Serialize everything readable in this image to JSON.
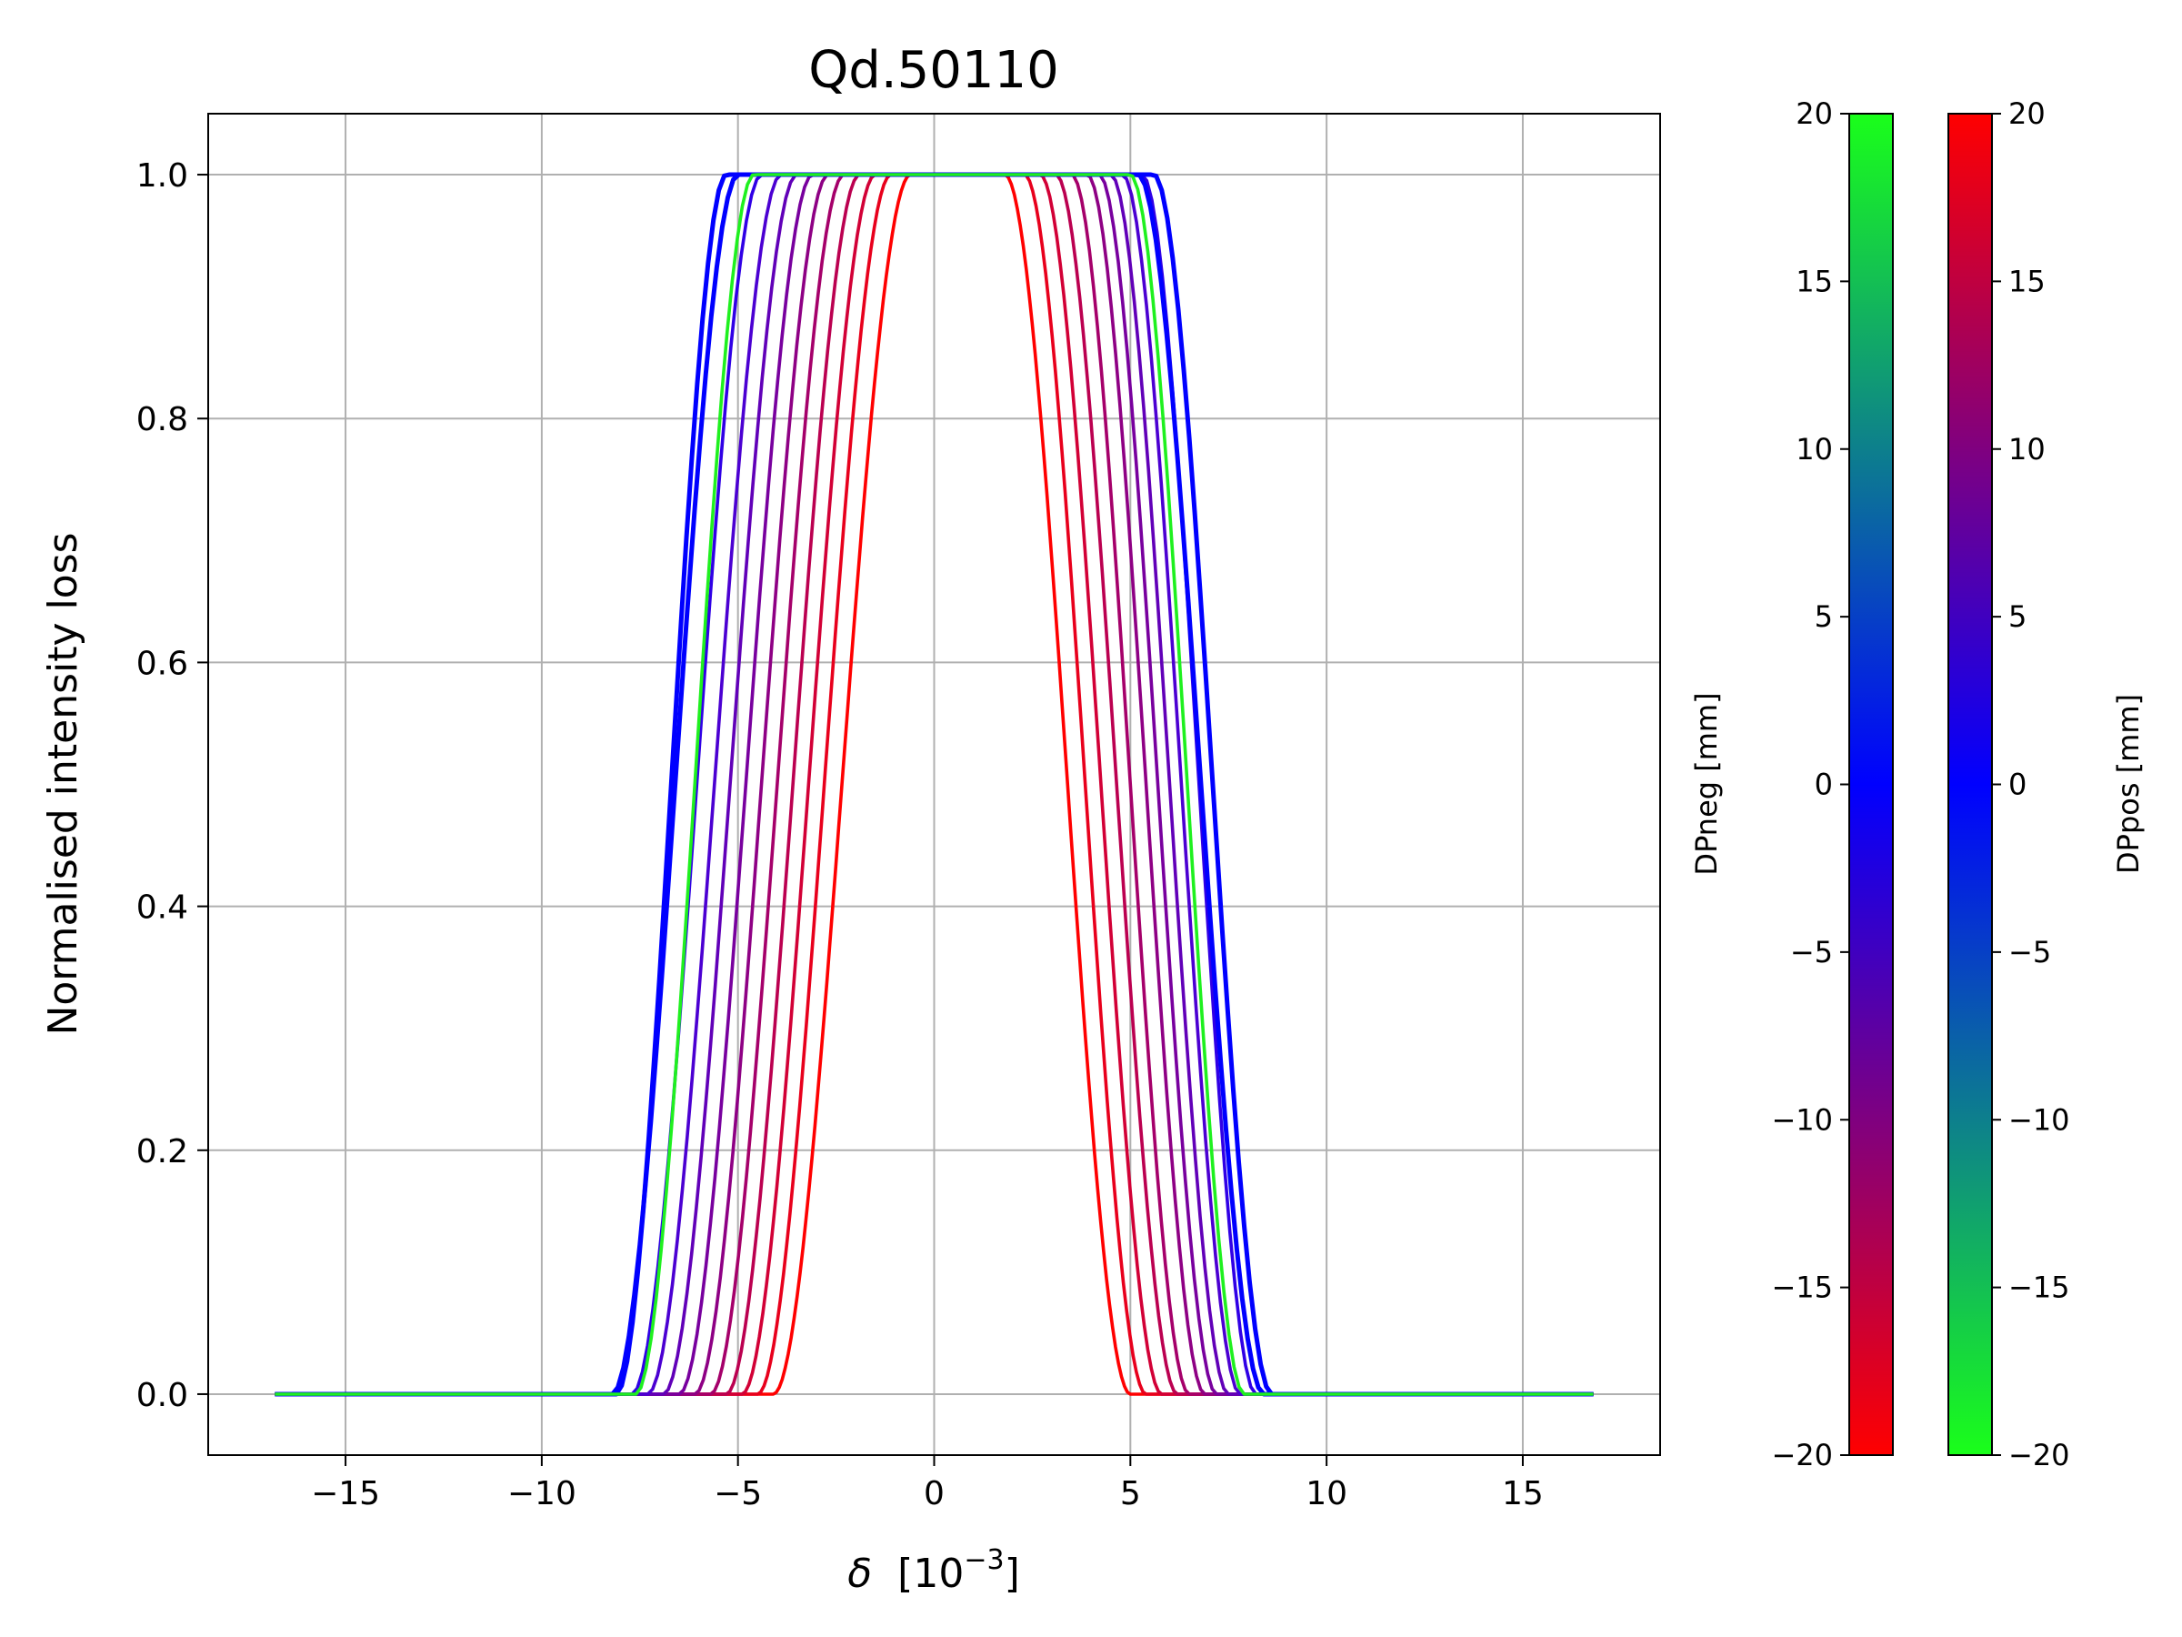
{
  "chart_data": {
    "type": "line",
    "title": "Qd.50110",
    "xlabel_symbol": "δ",
    "xlabel_unit_base": "[10",
    "xlabel_unit_exp": "−3",
    "xlabel_unit_close": "]",
    "ylabel": "Normalised intensity loss",
    "xlim": [
      -18.5,
      18.5
    ],
    "ylim": [
      -0.05,
      1.05
    ],
    "xticks": [
      -15,
      -10,
      -5,
      0,
      5,
      10,
      15
    ],
    "xtick_labels": [
      "−15",
      "−10",
      "−5",
      "0",
      "5",
      "10",
      "15"
    ],
    "yticks": [
      0.0,
      0.2,
      0.4,
      0.6,
      0.8,
      1.0
    ],
    "ytick_labels": [
      "0.0",
      "0.2",
      "0.4",
      "0.6",
      "0.8",
      "1.0"
    ],
    "grid": true,
    "x_range": [
      -16.8,
      16.8
    ],
    "series": [
      {
        "color": "#ff0000",
        "left": [
          -4.1,
          -0.6
        ],
        "right": [
          1.8,
          5.0
        ]
      },
      {
        "color": "#e8001c",
        "left": [
          -4.5,
          -1.1
        ],
        "right": [
          2.3,
          5.4
        ]
      },
      {
        "color": "#d20036",
        "left": [
          -4.9,
          -1.5
        ],
        "right": [
          2.7,
          5.8
        ]
      },
      {
        "color": "#bb0050",
        "left": [
          -5.3,
          -1.9
        ],
        "right": [
          3.1,
          6.2
        ]
      },
      {
        "color": "#a5006a",
        "left": [
          -5.7,
          -2.3
        ],
        "right": [
          3.5,
          6.5
        ]
      },
      {
        "color": "#8e0084",
        "left": [
          -6.1,
          -2.7
        ],
        "right": [
          3.9,
          6.9
        ]
      },
      {
        "color": "#78009e",
        "left": [
          -6.5,
          -3.1
        ],
        "right": [
          4.2,
          7.2
        ]
      },
      {
        "color": "#6100b8",
        "left": [
          -6.9,
          -3.5
        ],
        "right": [
          4.5,
          7.5
        ]
      },
      {
        "color": "#4b00d2",
        "left": [
          -7.3,
          -3.9
        ],
        "right": [
          4.8,
          7.8
        ]
      },
      {
        "color": "#3000e6",
        "left": [
          -7.7,
          -4.4
        ],
        "right": [
          5.3,
          8.2
        ]
      },
      {
        "color": "#0000ff",
        "left": [
          -8.2,
          -5.0
        ],
        "right": [
          5.6,
          8.6
        ]
      },
      {
        "color": "#0000ff",
        "left": [
          -8.1,
          -5.3
        ],
        "right": [
          5.2,
          8.4
        ]
      },
      {
        "color": "#1ff01f",
        "left": [
          -7.6,
          -4.6
        ],
        "right": [
          5.0,
          7.9
        ]
      }
    ],
    "colorbars": [
      {
        "label": "DPneg [mm]",
        "range": [
          -20,
          20
        ],
        "ticks": [
          20,
          15,
          10,
          5,
          0,
          -5,
          -10,
          -15,
          -20
        ],
        "tick_labels": [
          "20",
          "15",
          "10",
          "5",
          "0",
          "−5",
          "−10",
          "−15",
          "−20"
        ],
        "ticks_side": "left",
        "colors_bottom_to_top": [
          "#ff0000",
          "#0000ff",
          "#1aff1a"
        ]
      },
      {
        "label": "DPpos [mm]",
        "range": [
          -20,
          20
        ],
        "ticks": [
          20,
          15,
          10,
          5,
          0,
          -5,
          -10,
          -15,
          -20
        ],
        "tick_labels": [
          "20",
          "15",
          "10",
          "5",
          "0",
          "−5",
          "−10",
          "−15",
          "−20"
        ],
        "ticks_side": "right",
        "colors_bottom_to_top": [
          "#1aff1a",
          "#0000ff",
          "#ff0000"
        ]
      }
    ]
  }
}
